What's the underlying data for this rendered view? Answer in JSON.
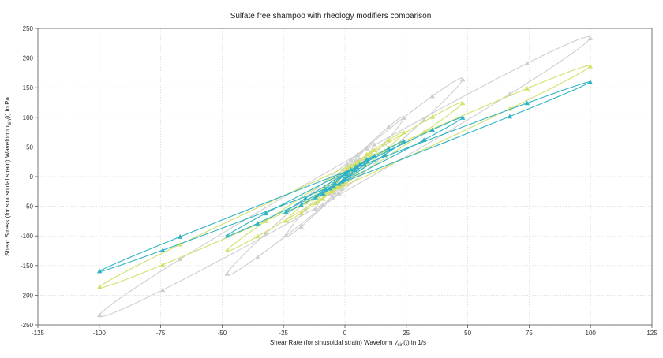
{
  "chart_data": {
    "type": "line",
    "title": "Sulfate free shampoo with rheology modifiers comparison",
    "xlabel_main": "Shear Rate (for sinusoidal strain) Waveform",
    "xlabel_sym": "γ̇",
    "xlabel_sub": "sin",
    "xlabel_tail": "(t)  in 1/s",
    "ylabel_main": "Shear Stress (for sinusoidal strain) Waveform",
    "ylabel_sym": "τ",
    "ylabel_sub": "sin",
    "ylabel_tail": "(t)  in Pa",
    "xlim": [
      -125,
      125
    ],
    "ylim": [
      -250,
      250
    ],
    "x_ticks": [
      -125,
      -100,
      -75,
      -50,
      -25,
      0,
      25,
      50,
      75,
      100,
      125
    ],
    "y_ticks": [
      -250,
      -200,
      -150,
      -100,
      -50,
      0,
      50,
      100,
      150,
      200,
      250
    ],
    "x_tick_labels": [
      "-125",
      "-100",
      "-75",
      "-50",
      "-25",
      "0",
      "25",
      "50",
      "75",
      "100",
      "125"
    ],
    "y_tick_labels": [
      "-250",
      "-200",
      "-150",
      "-100",
      "-50",
      "0",
      "50",
      "100",
      "150",
      "200",
      "250"
    ],
    "grid": true,
    "marker": "triangle",
    "series": [
      {
        "color": "#cfcfcf",
        "loops": [
          {
            "amplitude": 100,
            "peak": 235,
            "center": 25
          },
          {
            "amplitude": 48,
            "peak": 165,
            "center": 20
          },
          {
            "amplitude": 24,
            "peak": 100,
            "center": 15
          },
          {
            "amplitude": 12,
            "peak": 55,
            "center": 10
          },
          {
            "amplitude": 6,
            "peak": 30,
            "center": 6
          }
        ]
      },
      {
        "color": "#d4e06b",
        "loops": [
          {
            "amplitude": 100,
            "peak": 187,
            "center": 15
          },
          {
            "amplitude": 48,
            "peak": 125,
            "center": 12
          },
          {
            "amplitude": 24,
            "peak": 75,
            "center": 9
          },
          {
            "amplitude": 12,
            "peak": 45,
            "center": 6
          },
          {
            "amplitude": 6,
            "peak": 25,
            "center": 4
          }
        ]
      },
      {
        "color": "#2fb3c4",
        "loops": [
          {
            "amplitude": 100,
            "peak": 160,
            "center": 8
          },
          {
            "amplitude": 48,
            "peak": 100,
            "center": 7
          },
          {
            "amplitude": 24,
            "peak": 60,
            "center": 5
          },
          {
            "amplitude": 12,
            "peak": 35,
            "center": 4
          },
          {
            "amplitude": 6,
            "peak": 20,
            "center": 3
          }
        ]
      }
    ]
  }
}
